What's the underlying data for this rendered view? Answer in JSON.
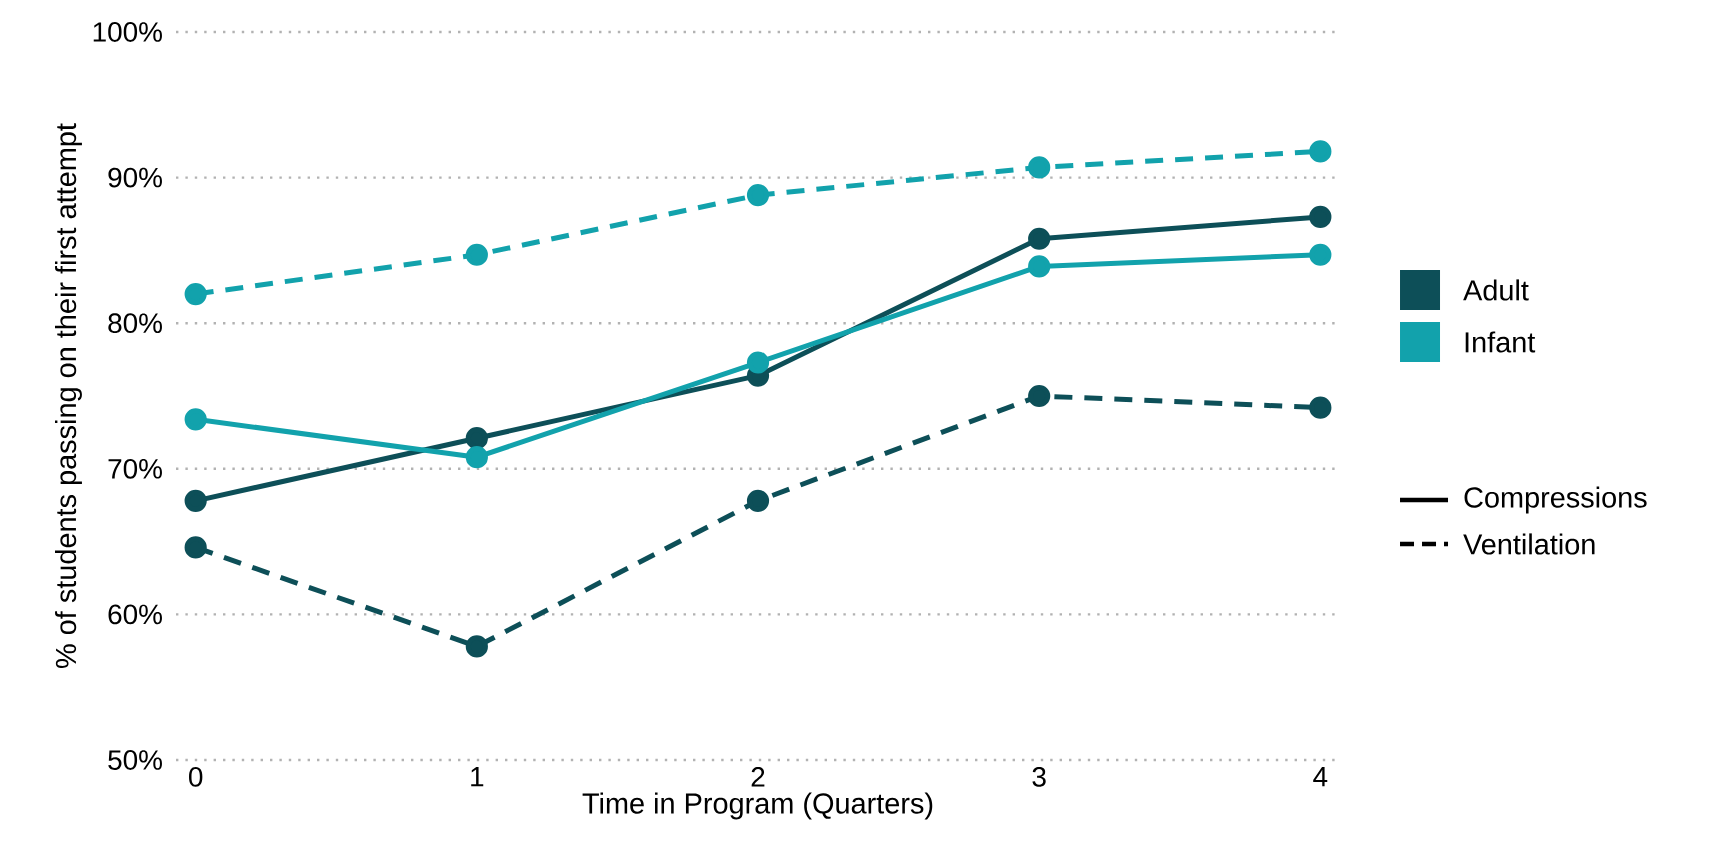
{
  "chart_data": {
    "type": "line",
    "xlabel": "Time in Program (Quarters)",
    "ylabel": "% of students passing on their first attempt",
    "x": [
      0,
      1,
      2,
      3,
      4
    ],
    "series": [
      {
        "name": "Adult",
        "color": "#0d4f58",
        "line_style": "solid",
        "values": [
          67.8,
          72.1,
          76.4,
          85.8,
          87.3
        ]
      },
      {
        "name": "Infant",
        "color": "#12a2ac",
        "line_style": "solid",
        "values": [
          73.4,
          70.8,
          77.3,
          83.9,
          84.7
        ]
      },
      {
        "color": "#0d4f58",
        "line_style": "dashed",
        "values": [
          64.6,
          57.8,
          67.8,
          75.0,
          74.2
        ]
      },
      {
        "color": "#12a2ac",
        "line_style": "dashed",
        "values": [
          82.0,
          84.7,
          88.8,
          90.7,
          91.8
        ]
      }
    ],
    "annotations": [
      "Compressions",
      "Ventilation"
    ],
    "xlim": [
      -0.07,
      4.07
    ],
    "xticks": [
      0,
      1,
      2,
      3,
      4
    ],
    "ylim": [
      50,
      100
    ],
    "yticks": [
      {
        "value": 50,
        "label": "50%"
      },
      {
        "value": 60,
        "label": "60%"
      },
      {
        "value": 70,
        "label": "70%"
      },
      {
        "value": 80,
        "label": "80%"
      },
      {
        "value": 90,
        "label": "90%"
      },
      {
        "value": 100,
        "label": "100%"
      }
    ],
    "grid": "y",
    "legend": "right",
    "marker": "circle"
  }
}
